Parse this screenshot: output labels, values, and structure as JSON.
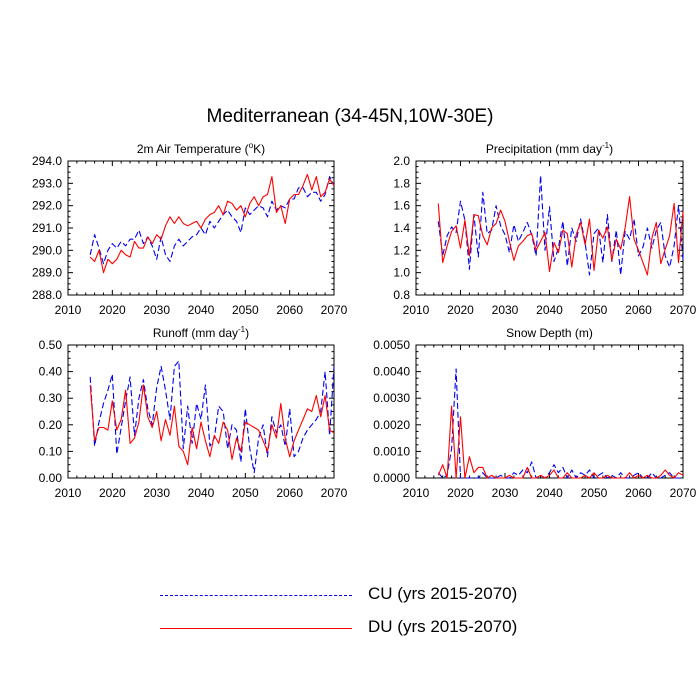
{
  "title": "Mediterranean (34-45N,10W-30E)",
  "colors": {
    "cu": "#0000ee",
    "du": "#ff0000"
  },
  "legend": {
    "cu_label": "CU (yrs 2015-2070)",
    "du_label": "DU (yrs 2015-2070)"
  },
  "chart_data": [
    {
      "type": "line",
      "title": "2m Air Temperature (°K)",
      "title_parts": {
        "main": "2m Air Temperature (",
        "sup": "o",
        "after": "K)"
      },
      "xlim": [
        2010,
        2070
      ],
      "ylim": [
        288.0,
        294.0
      ],
      "xticks": [
        "2010",
        "2020",
        "2030",
        "2040",
        "2050",
        "2060",
        "2070"
      ],
      "yticks": [
        "288.0",
        "289.0",
        "290.0",
        "291.0",
        "292.0",
        "293.0",
        "294.0"
      ],
      "x_start": 2015,
      "series": [
        {
          "name": "CU (yrs 2015-2070)",
          "style": "dashed",
          "values": [
            289.8,
            290.7,
            290.1,
            289.4,
            290.0,
            290.3,
            290.1,
            290.4,
            290.2,
            290.5,
            290.5,
            290.9,
            290.3,
            290.6,
            290.2,
            289.6,
            290.6,
            289.8,
            289.5,
            290.2,
            290.5,
            290.2,
            290.4,
            290.6,
            290.7,
            291.0,
            290.7,
            291.3,
            291.0,
            291.3,
            291.6,
            291.8,
            291.5,
            291.3,
            290.8,
            291.9,
            291.6,
            291.8,
            292.0,
            291.9,
            291.5,
            292.2,
            291.8,
            292.0,
            291.9,
            292.3,
            292.3,
            292.8,
            292.8,
            292.4,
            292.6,
            292.6,
            292.2,
            292.5,
            293.3,
            292.9
          ]
        },
        {
          "name": "DU (yrs 2015-2070)",
          "style": "solid",
          "values": [
            289.7,
            289.5,
            290.0,
            289.0,
            289.6,
            289.4,
            289.6,
            290.0,
            289.8,
            289.7,
            290.4,
            290.1,
            290.1,
            290.6,
            290.3,
            290.7,
            290.5,
            291.1,
            291.5,
            291.2,
            291.5,
            291.2,
            291.1,
            291.2,
            291.3,
            291.0,
            291.4,
            291.6,
            291.7,
            292.0,
            291.6,
            292.2,
            292.1,
            291.8,
            292.0,
            291.5,
            292.1,
            292.4,
            292.0,
            292.4,
            292.5,
            293.3,
            291.7,
            292.0,
            291.2,
            292.3,
            292.5,
            292.5,
            292.9,
            293.4,
            292.7,
            293.3,
            292.4,
            292.6,
            293.2,
            292.9
          ]
        }
      ]
    },
    {
      "type": "line",
      "title": "Precipitation (mm day-1)",
      "title_parts": {
        "main": "Precipitation (mm day",
        "sup": "-1",
        "after": ")"
      },
      "xlim": [
        2010,
        2070
      ],
      "ylim": [
        0.8,
        2.0
      ],
      "xticks": [
        "2010",
        "2020",
        "2030",
        "2040",
        "2050",
        "2060",
        "2070"
      ],
      "yticks": [
        "0.8",
        "1.0",
        "1.2",
        "1.4",
        "1.6",
        "1.8",
        "2.0"
      ],
      "x_start": 2015,
      "series": [
        {
          "name": "CU (yrs 2015-2070)",
          "style": "dashed",
          "values": [
            1.46,
            1.15,
            1.33,
            1.41,
            1.36,
            1.64,
            1.47,
            1.03,
            1.52,
            1.14,
            1.72,
            1.35,
            1.38,
            1.6,
            1.42,
            1.34,
            1.18,
            1.43,
            1.28,
            1.36,
            1.45,
            1.34,
            1.15,
            1.87,
            1.2,
            1.59,
            1.1,
            1.22,
            1.46,
            1.06,
            1.4,
            1.28,
            1.48,
            1.27,
            0.98,
            1.35,
            1.4,
            1.09,
            1.52,
            1.1,
            1.38,
            0.98,
            1.37,
            1.3,
            1.48,
            1.15,
            1.23,
            1.4,
            1.22,
            1.38,
            1.45,
            1.15,
            1.05,
            1.24,
            1.6,
            1.12
          ]
        },
        {
          "name": "DU (yrs 2015-2070)",
          "style": "solid",
          "values": [
            1.62,
            1.09,
            1.24,
            1.37,
            1.42,
            1.22,
            1.47,
            1.15,
            1.52,
            1.51,
            1.33,
            1.25,
            1.4,
            1.44,
            1.56,
            1.46,
            1.28,
            1.11,
            1.24,
            1.28,
            1.33,
            1.35,
            1.2,
            1.28,
            1.36,
            1.01,
            1.27,
            1.18,
            1.38,
            1.35,
            1.05,
            1.34,
            1.45,
            1.25,
            1.48,
            1.02,
            1.38,
            1.31,
            1.41,
            1.11,
            1.3,
            1.21,
            1.4,
            1.68,
            1.3,
            1.2,
            1.09,
            0.98,
            1.31,
            1.45,
            1.08,
            1.21,
            1.33,
            1.62,
            1.09,
            1.55
          ]
        }
      ]
    },
    {
      "type": "line",
      "title": "Runoff (mm day-1)",
      "title_parts": {
        "main": "Runoff (mm day",
        "sup": "-1",
        "after": ")"
      },
      "xlim": [
        2010,
        2070
      ],
      "ylim": [
        0.0,
        0.5
      ],
      "xticks": [
        "2010",
        "2020",
        "2030",
        "2040",
        "2050",
        "2060",
        "2070"
      ],
      "yticks": [
        "0.00",
        "0.10",
        "0.20",
        "0.30",
        "0.40",
        "0.50"
      ],
      "x_start": 2015,
      "series": [
        {
          "name": "CU (yrs 2015-2070)",
          "style": "dashed",
          "values": [
            0.38,
            0.12,
            0.21,
            0.28,
            0.33,
            0.39,
            0.09,
            0.19,
            0.29,
            0.38,
            0.16,
            0.3,
            0.37,
            0.26,
            0.2,
            0.34,
            0.42,
            0.33,
            0.22,
            0.42,
            0.44,
            0.11,
            0.27,
            0.13,
            0.28,
            0.22,
            0.35,
            0.12,
            0.15,
            0.27,
            0.25,
            0.11,
            0.2,
            0.18,
            0.06,
            0.26,
            0.11,
            0.02,
            0.15,
            0.2,
            0.08,
            0.23,
            0.17,
            0.2,
            0.12,
            0.26,
            0.08,
            0.1,
            0.15,
            0.18,
            0.2,
            0.22,
            0.25,
            0.4,
            0.16,
            0.42
          ]
        },
        {
          "name": "DU (yrs 2015-2070)",
          "style": "solid",
          "values": [
            0.35,
            0.14,
            0.19,
            0.19,
            0.18,
            0.29,
            0.18,
            0.22,
            0.33,
            0.13,
            0.15,
            0.21,
            0.35,
            0.23,
            0.19,
            0.25,
            0.14,
            0.22,
            0.16,
            0.27,
            0.12,
            0.1,
            0.05,
            0.19,
            0.11,
            0.21,
            0.14,
            0.08,
            0.16,
            0.13,
            0.21,
            0.18,
            0.07,
            0.15,
            0.1,
            0.21,
            0.2,
            0.19,
            0.18,
            0.14,
            0.1,
            0.2,
            0.15,
            0.28,
            0.15,
            0.08,
            0.14,
            0.18,
            0.22,
            0.26,
            0.25,
            0.31,
            0.23,
            0.31,
            0.18,
            0.17
          ]
        }
      ]
    },
    {
      "type": "line",
      "title": "Snow Depth (m)",
      "title_parts": {
        "main": "Snow Depth (m)",
        "sup": "",
        "after": ""
      },
      "xlim": [
        2010,
        2070
      ],
      "ylim": [
        0.0,
        0.005
      ],
      "xticks": [
        "2010",
        "2020",
        "2030",
        "2040",
        "2050",
        "2060",
        "2070"
      ],
      "yticks": [
        "0.0000",
        "0.0010",
        "0.0020",
        "0.0030",
        "0.0040",
        "0.0050"
      ],
      "x_start": 2015,
      "series": [
        {
          "name": "CU (yrs 2015-2070)",
          "style": "dashed",
          "values": [
            0.0002,
            0.0,
            0.0001,
            0.0011,
            0.0041,
            0.0,
            0.0,
            0.0,
            0.0,
            0.0,
            0.0002,
            0.0,
            0.0,
            0.0,
            0.0001,
            0.0,
            0.0,
            0.0002,
            0.0001,
            0.0003,
            0.0002,
            0.0006,
            0.0,
            0.0001,
            0.0,
            0.0002,
            0.0005,
            0.0002,
            0.0004,
            0.0,
            0.0003,
            0.0,
            0.0002,
            0.0001,
            0.0003,
            0.0,
            0.0001,
            0.0002,
            0.0,
            0.0001,
            0.0,
            0.0002,
            0.0,
            0.0,
            0.0001,
            0.0002,
            0.0,
            0.0,
            0.0002,
            0.0,
            0.0,
            0.0001,
            0.0002,
            0.0,
            0.0,
            0.0
          ]
        },
        {
          "name": "DU (yrs 2015-2070)",
          "style": "solid",
          "values": [
            0.0001,
            0.0005,
            0.0,
            0.0027,
            0.0,
            0.0023,
            0.0,
            0.0008,
            0.0002,
            0.0004,
            0.0004,
            0.0,
            0.0001,
            0.0,
            0.0,
            0.0,
            0.0001,
            0.0,
            0.0,
            0.0,
            0.0004,
            0.0,
            0.0,
            0.0001,
            0.0,
            0.0001,
            0.0003,
            0.0,
            0.0,
            0.0002,
            0.0,
            0.0,
            0.0,
            0.0001,
            0.0,
            0.0002,
            0.0,
            0.0,
            0.0001,
            0.0,
            0.0,
            0.0,
            0.0,
            0.0002,
            0.0,
            0.0001,
            0.0,
            0.0001,
            0.0,
            0.0,
            0.0001,
            0.0003,
            0.0001,
            0.0,
            0.0002,
            0.0001
          ]
        }
      ]
    }
  ]
}
